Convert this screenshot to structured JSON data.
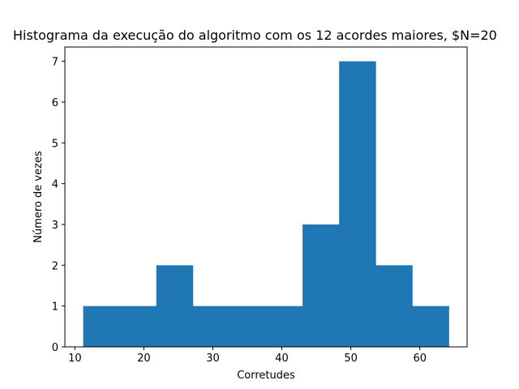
{
  "chart_data": {
    "type": "bar",
    "title": "Histograma da execução do algoritmo com os 12 acordes maiores, $N=20",
    "xlabel": "Corretudes",
    "ylabel": "Número de vezes",
    "bins": [
      {
        "start": 11.2,
        "end": 16.5,
        "count": 1
      },
      {
        "start": 16.5,
        "end": 21.8,
        "count": 1
      },
      {
        "start": 21.8,
        "end": 27.1,
        "count": 2
      },
      {
        "start": 27.1,
        "end": 32.4,
        "count": 1
      },
      {
        "start": 32.4,
        "end": 37.7,
        "count": 1
      },
      {
        "start": 37.7,
        "end": 43.0,
        "count": 1
      },
      {
        "start": 43.0,
        "end": 48.3,
        "count": 3
      },
      {
        "start": 48.3,
        "end": 53.6,
        "count": 7
      },
      {
        "start": 53.6,
        "end": 58.9,
        "count": 2
      },
      {
        "start": 58.9,
        "end": 64.2,
        "count": 1
      }
    ],
    "xlim": [
      8.55,
      66.85
    ],
    "ylim": [
      0,
      7.35
    ],
    "xticks": [
      10,
      20,
      30,
      40,
      50,
      60
    ],
    "yticks": [
      0,
      1,
      2,
      3,
      4,
      5,
      6,
      7
    ],
    "grid": false,
    "bar_color": "#1f77b4"
  }
}
